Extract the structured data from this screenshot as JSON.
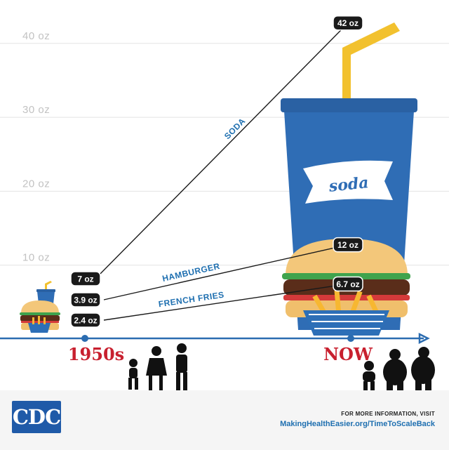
{
  "chart_data": {
    "type": "line",
    "x": [
      "1950s",
      "NOW"
    ],
    "ylim": [
      0,
      40
    ],
    "y_ticks": [
      10,
      20,
      30,
      40
    ],
    "y_tick_labels": [
      "10 oz",
      "20 oz",
      "30 oz",
      "40 oz"
    ],
    "grid": true,
    "series": [
      {
        "name": "SODA",
        "values": [
          7,
          42
        ],
        "value_labels": [
          "7 oz",
          "42 oz"
        ]
      },
      {
        "name": "HAMBURGER",
        "values": [
          3.9,
          12
        ],
        "value_labels": [
          "3.9 oz",
          "12 oz"
        ]
      },
      {
        "name": "FRENCH FRIES",
        "values": [
          2.4,
          6.7
        ],
        "value_labels": [
          "2.4 oz",
          "6.7 oz"
        ]
      }
    ]
  },
  "illustrations": {
    "soda_cup_text": "soda"
  },
  "footer": {
    "logo_text": "CDC",
    "note": "FOR MORE INFORMATION, VISIT",
    "link": "MakingHealthEasier.org/TimeToScaleBack"
  },
  "colors": {
    "axis_blue": "#2b6cb0",
    "label_red": "#c8202f",
    "pill_black": "#1a1a1a",
    "cup_blue": "#2f6db5",
    "straw_yellow": "#f2c12e",
    "bun": "#f3c77a",
    "lettuce": "#3fa34d",
    "tomato": "#d43a3a",
    "patty": "#5a2d1a",
    "fries": "#f7b731",
    "basket": "#2d6fb7",
    "grid": "#e3e3e3"
  }
}
